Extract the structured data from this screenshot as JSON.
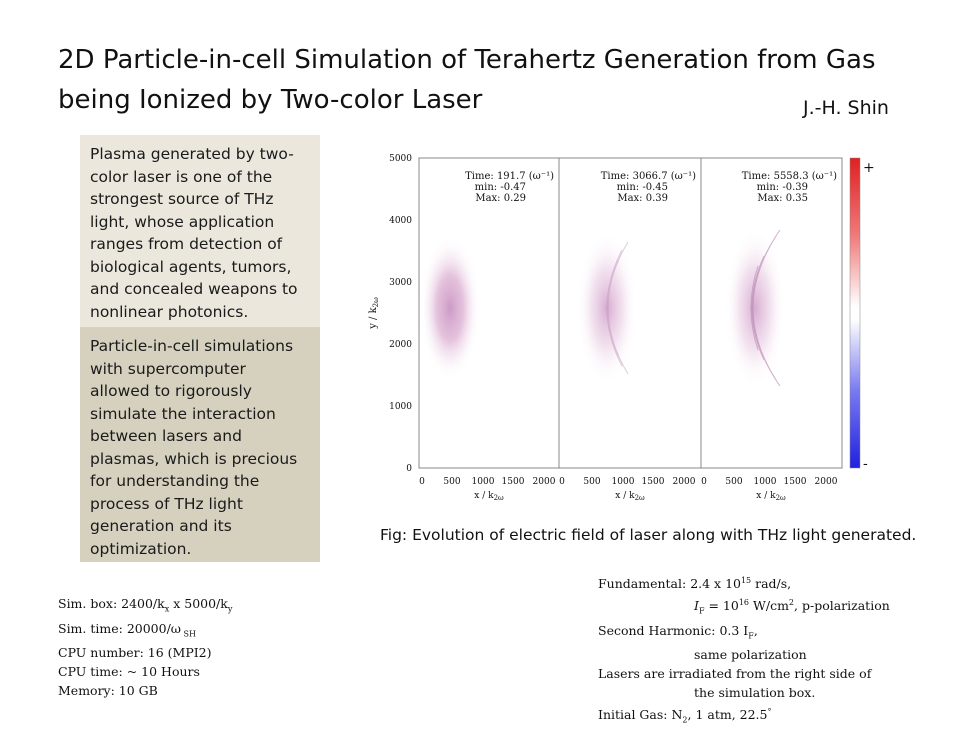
{
  "title": "2D Particle-in-cell Simulation of Terahertz Generation from Gas being Ionized by Two-color Laser",
  "author": "J.-H. Shin",
  "box1_text": "Plasma generated by two-color laser is one of the strongest source of THz light, whose application ranges from detection of biological agents, tumors, and concealed weapons to nonlinear photonics.",
  "box2_text": "Particle-in-cell simulations with supercomputer allowed to rigorously simulate the interaction between lasers and plasmas, which is precious for understanding the process of THz light generation and its optimization.",
  "caption": "Fig: Evolution of electric field of laser along with THz light generated.",
  "figure": {
    "ylabel": "y / k",
    "ylabel_sub": "2ω",
    "xlabel": "x / k",
    "xlabel_sub": "2ω",
    "yticks": [
      "5000",
      "4000",
      "3000",
      "2000",
      "1000",
      "0"
    ],
    "xticks": [
      "0",
      "500",
      "1000",
      "1500",
      "2000"
    ],
    "colorbar_plus": "+",
    "colorbar_minus": "-",
    "panels": [
      {
        "time": "Time: 191.7 (ω⁻¹)",
        "min": "min: -0.47",
        "max": "Max:  0.29"
      },
      {
        "time": "Time: 3066.7 (ω⁻¹)",
        "min": "min: -0.45",
        "max": "Max:  0.39"
      },
      {
        "time": "Time: 5558.3 (ω⁻¹)",
        "min": "min: -0.39",
        "max": "Max:  0.35"
      }
    ]
  },
  "sim": {
    "box_a": "Sim. box: 2400/k",
    "box_sub1": "x",
    "box_b": " x 5000/k",
    "box_sub2": "y",
    "time_a": "Sim. time: 20000/ω",
    "time_sub": " SH",
    "cpu_number": "CPU number: 16 (MPI2)",
    "cpu_time": "CPU time: ~ 10 Hours",
    "memory": "Memory: 10 GB"
  },
  "laser": {
    "fund_a": "Fundamental: 2.4 x 10",
    "fund_sup": "15",
    "fund_b": " rad/s,",
    "fund2_a": "I",
    "fund2_sub": "F",
    "fund2_b": " = 10",
    "fund2_sup": "16",
    "fund2_c": " W/cm",
    "fund2_sup2": "2",
    "fund2_d": ", p-polarization",
    "sh_a": "Second Harmonic: 0.3 I",
    "sh_sub": "F",
    "sh_b": ",",
    "sh2": "same polarization",
    "irr": "Lasers are irradiated from the right side of",
    "irr2": "the simulation box.",
    "gas_a": "Initial Gas: N",
    "gas_sub": "2",
    "gas_b": ", 1 atm, 22.5",
    "gas_sup": "°"
  }
}
